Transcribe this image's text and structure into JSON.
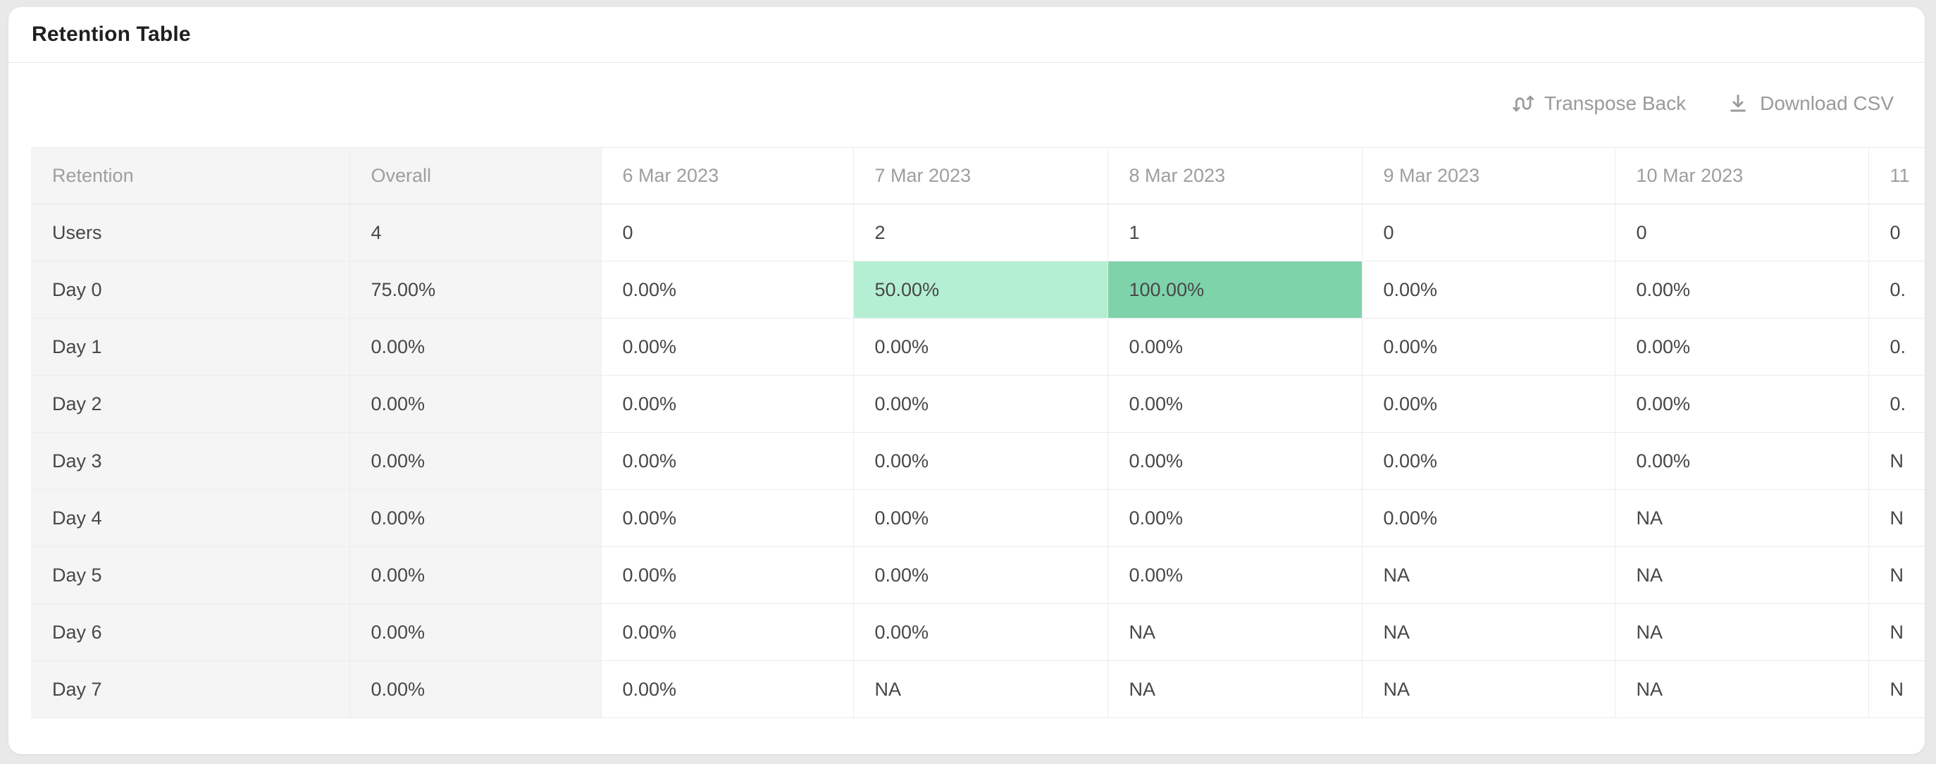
{
  "card": {
    "title": "Retention Table",
    "toolbar": {
      "transpose_label": "Transpose Back",
      "download_label": "Download CSV",
      "icons": {
        "transpose": "swap-vertical-icon",
        "download": "download-icon"
      }
    }
  },
  "table": {
    "columns": [
      "Retention",
      "Overall",
      "6 Mar 2023",
      "7 Mar 2023",
      "8 Mar 2023",
      "9 Mar 2023",
      "10 Mar 2023",
      "11"
    ],
    "rows": [
      {
        "label": "Users",
        "values": [
          "4",
          "0",
          "2",
          "1",
          "0",
          "0",
          "0"
        ]
      },
      {
        "label": "Day 0",
        "values": [
          "75.00%",
          "0.00%",
          "50.00%",
          "100.00%",
          "0.00%",
          "0.00%",
          "0."
        ],
        "highlights": [
          null,
          null,
          "light",
          "dark",
          null,
          null,
          null
        ]
      },
      {
        "label": "Day 1",
        "values": [
          "0.00%",
          "0.00%",
          "0.00%",
          "0.00%",
          "0.00%",
          "0.00%",
          "0."
        ]
      },
      {
        "label": "Day 2",
        "values": [
          "0.00%",
          "0.00%",
          "0.00%",
          "0.00%",
          "0.00%",
          "0.00%",
          "0."
        ]
      },
      {
        "label": "Day 3",
        "values": [
          "0.00%",
          "0.00%",
          "0.00%",
          "0.00%",
          "0.00%",
          "0.00%",
          "N"
        ]
      },
      {
        "label": "Day 4",
        "values": [
          "0.00%",
          "0.00%",
          "0.00%",
          "0.00%",
          "0.00%",
          "NA",
          "N"
        ]
      },
      {
        "label": "Day 5",
        "values": [
          "0.00%",
          "0.00%",
          "0.00%",
          "0.00%",
          "NA",
          "NA",
          "N"
        ]
      },
      {
        "label": "Day 6",
        "values": [
          "0.00%",
          "0.00%",
          "0.00%",
          "NA",
          "NA",
          "NA",
          "N"
        ]
      },
      {
        "label": "Day 7",
        "values": [
          "0.00%",
          "0.00%",
          "NA",
          "NA",
          "NA",
          "NA",
          "N"
        ]
      }
    ],
    "colors": {
      "highlight_light": "#b4efd4",
      "highlight_dark": "#7fd3ab",
      "sticky_column_bg": "#f5f5f5"
    }
  }
}
